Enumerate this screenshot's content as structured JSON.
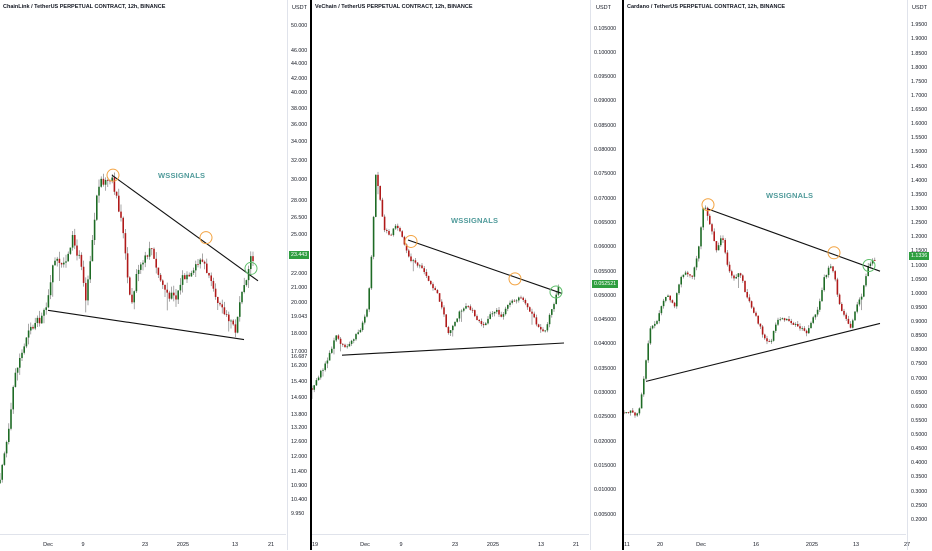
{
  "colors": {
    "up": "#1e6b25",
    "down": "#b01a1a",
    "wick": "#6d6d6d",
    "line": "#111111",
    "resistance_marker": "#f3a341",
    "breakout_marker": "#5fbf6b",
    "watermark": "#4f9a9a",
    "price_tag": "#2e9e3f"
  },
  "chart_data": [
    {
      "type": "candlestick",
      "title": "ChainLink / TetherUS PERPETUAL CONTRACT, 12h, BINANCE",
      "watermark": "WSSIGNALS",
      "y_unit": "USDT",
      "y_scale": "log",
      "ylim": [
        9.3,
        52
      ],
      "y_ticks": [
        "50.000",
        "46.000",
        "44.000",
        "42.000",
        "40.000",
        "38.000",
        "36.000",
        "34.000",
        "32.000",
        "30.000",
        "28.000",
        "26.500",
        "25.000",
        "23.500",
        "22.000",
        "21.000",
        "20.000",
        "19.043",
        "18.000",
        "17.000",
        "16.687",
        "16.200",
        "15.400",
        "14.600",
        "13.800",
        "13.200",
        "12.600",
        "12.000",
        "11.400",
        "10.900",
        "10.400",
        "9.950"
      ],
      "x_ticks": [
        "Dec",
        "9",
        "23",
        "2025",
        "13",
        "21"
      ],
      "current_price": "23.443",
      "price_path": [
        [
          0,
          11.0
        ],
        [
          8,
          13.0
        ],
        [
          14,
          15.5
        ],
        [
          22,
          17.0
        ],
        [
          30,
          18.3
        ],
        [
          38,
          18.8
        ],
        [
          46,
          19.5
        ],
        [
          50,
          21.5
        ],
        [
          56,
          23.5
        ],
        [
          64,
          22.5
        ],
        [
          72,
          24.8
        ],
        [
          80,
          23.0
        ],
        [
          86,
          20.0
        ],
        [
          92,
          24.0
        ],
        [
          98,
          29.5
        ],
        [
          106,
          30.0
        ],
        [
          112,
          30.5
        ],
        [
          118,
          27.5
        ],
        [
          124,
          25.0
        ],
        [
          128,
          21.5
        ],
        [
          132,
          20.0
        ],
        [
          138,
          22.5
        ],
        [
          146,
          23.5
        ],
        [
          152,
          24.0
        ],
        [
          158,
          22.0
        ],
        [
          164,
          21.0
        ],
        [
          170,
          20.5
        ],
        [
          176,
          20.2
        ],
        [
          182,
          21.8
        ],
        [
          188,
          22.0
        ],
        [
          196,
          22.8
        ],
        [
          204,
          23.0
        ],
        [
          210,
          21.5
        ],
        [
          216,
          20.0
        ],
        [
          222,
          19.5
        ],
        [
          230,
          19.0
        ],
        [
          236,
          18.2
        ],
        [
          240,
          20.0
        ],
        [
          246,
          21.3
        ],
        [
          250,
          23.4
        ],
        [
          254,
          22.5
        ]
      ],
      "resistance": {
        "from": [
          112,
          30.5
        ],
        "to": [
          258,
          21.5
        ]
      },
      "support": {
        "from": [
          48,
          19.5
        ],
        "to": [
          244,
          17.7
        ]
      },
      "resistance_markers": [
        [
          113,
          30.5
        ],
        [
          206,
          24.8
        ]
      ],
      "breakout_marker": [
        251,
        22.4
      ]
    },
    {
      "type": "candlestick",
      "title": "VeChain / TetherUS PERPETUAL CONTRACT, 12h, BINANCE",
      "watermark": "WSSIGNALS",
      "y_unit": "USDT",
      "y_scale": "linear",
      "ylim": [
        0.001,
        0.108
      ],
      "y_ticks": [
        "0.105000",
        "0.100000",
        "0.095000",
        "0.090000",
        "0.085000",
        "0.080000",
        "0.075000",
        "0.070000",
        "0.065000",
        "0.060000",
        "0.055000",
        "0.050000",
        "0.045000",
        "0.040000",
        "0.035000",
        "0.030000",
        "0.025000",
        "0.020000",
        "0.015000",
        "0.010000",
        "0.005000"
      ],
      "x_ticks": [
        "19",
        "Dec",
        "9",
        "23",
        "2025",
        "13",
        "21"
      ],
      "current_price": "0.052521",
      "price_path": [
        [
          0,
          0.031
        ],
        [
          8,
          0.034
        ],
        [
          16,
          0.037
        ],
        [
          24,
          0.042
        ],
        [
          30,
          0.04
        ],
        [
          36,
          0.0395
        ],
        [
          42,
          0.041
        ],
        [
          50,
          0.044
        ],
        [
          56,
          0.048
        ],
        [
          60,
          0.06
        ],
        [
          64,
          0.076
        ],
        [
          68,
          0.07
        ],
        [
          72,
          0.064
        ],
        [
          78,
          0.062
        ],
        [
          84,
          0.065
        ],
        [
          90,
          0.062
        ],
        [
          96,
          0.058
        ],
        [
          102,
          0.057
        ],
        [
          108,
          0.056
        ],
        [
          114,
          0.054
        ],
        [
          120,
          0.052
        ],
        [
          126,
          0.05
        ],
        [
          132,
          0.046
        ],
        [
          136,
          0.042
        ],
        [
          142,
          0.044
        ],
        [
          148,
          0.047
        ],
        [
          154,
          0.048
        ],
        [
          160,
          0.047
        ],
        [
          166,
          0.045
        ],
        [
          172,
          0.044
        ],
        [
          178,
          0.046
        ],
        [
          184,
          0.047
        ],
        [
          190,
          0.046
        ],
        [
          196,
          0.048
        ],
        [
          202,
          0.049
        ],
        [
          208,
          0.05
        ],
        [
          214,
          0.048
        ],
        [
          220,
          0.046
        ],
        [
          226,
          0.044
        ],
        [
          232,
          0.042
        ],
        [
          238,
          0.046
        ],
        [
          244,
          0.05
        ],
        [
          248,
          0.0525
        ]
      ],
      "resistance": {
        "from": [
          96,
          0.0615
        ],
        "to": [
          250,
          0.0505
        ]
      },
      "support": {
        "from": [
          30,
          0.0378
        ],
        "to": [
          252,
          0.0403
        ]
      },
      "resistance_markers": [
        [
          99,
          0.0612
        ],
        [
          203,
          0.0535
        ]
      ],
      "breakout_marker": [
        244,
        0.0508
      ]
    },
    {
      "type": "candlestick",
      "title": "Cardano / TetherUS PERPETUAL CONTRACT, 12h, BINANCE",
      "watermark": "WSSIGNALS",
      "y_unit": "USDT",
      "y_scale": "linear",
      "ylim": [
        0.15,
        1.99
      ],
      "y_ticks": [
        "1.9500",
        "1.9000",
        "1.8500",
        "1.8000",
        "1.7500",
        "1.7000",
        "1.6500",
        "1.6000",
        "1.5500",
        "1.5000",
        "1.4500",
        "1.4000",
        "1.3500",
        "1.3000",
        "1.2500",
        "1.2000",
        "1.1500",
        "1.1000",
        "1.0500",
        "1.0000",
        "0.9500",
        "0.9000",
        "0.8500",
        "0.8000",
        "0.7500",
        "0.7000",
        "0.6500",
        "0.6000",
        "0.5500",
        "0.5000",
        "0.4500",
        "0.4000",
        "0.3500",
        "0.3000",
        "0.2500",
        "0.2000"
      ],
      "x_ticks": [
        "11",
        "20",
        "Dec",
        "16",
        "2025",
        "13",
        "27"
      ],
      "current_price": "1.1336",
      "price_path": [
        [
          0,
          0.58
        ],
        [
          8,
          0.58
        ],
        [
          14,
          0.57
        ],
        [
          20,
          0.7
        ],
        [
          26,
          0.88
        ],
        [
          32,
          0.9
        ],
        [
          38,
          0.96
        ],
        [
          44,
          1.0
        ],
        [
          50,
          0.95
        ],
        [
          56,
          1.05
        ],
        [
          62,
          1.08
        ],
        [
          68,
          1.05
        ],
        [
          74,
          1.15
        ],
        [
          80,
          1.32
        ],
        [
          86,
          1.25
        ],
        [
          92,
          1.15
        ],
        [
          98,
          1.2
        ],
        [
          104,
          1.1
        ],
        [
          110,
          1.05
        ],
        [
          116,
          1.08
        ],
        [
          122,
          1.0
        ],
        [
          128,
          0.95
        ],
        [
          134,
          0.9
        ],
        [
          140,
          0.85
        ],
        [
          146,
          0.82
        ],
        [
          152,
          0.9
        ],
        [
          158,
          0.92
        ],
        [
          164,
          0.9
        ],
        [
          170,
          0.89
        ],
        [
          176,
          0.88
        ],
        [
          182,
          0.86
        ],
        [
          188,
          0.9
        ],
        [
          194,
          0.95
        ],
        [
          200,
          1.05
        ],
        [
          206,
          1.1
        ],
        [
          210,
          1.08
        ],
        [
          214,
          0.98
        ],
        [
          220,
          0.92
        ],
        [
          226,
          0.88
        ],
        [
          232,
          0.95
        ],
        [
          238,
          1.0
        ],
        [
          244,
          1.1
        ],
        [
          248,
          1.12
        ],
        [
          252,
          1.11
        ]
      ],
      "resistance": {
        "from": [
          84,
          1.3
        ],
        "to": [
          256,
          1.08
        ]
      },
      "support": {
        "from": [
          22,
          0.69
        ],
        "to": [
          256,
          0.895
        ]
      },
      "resistance_markers": [
        [
          84,
          1.315
        ],
        [
          210,
          1.145
        ]
      ],
      "breakout_marker": [
        245,
        1.1
      ]
    }
  ]
}
